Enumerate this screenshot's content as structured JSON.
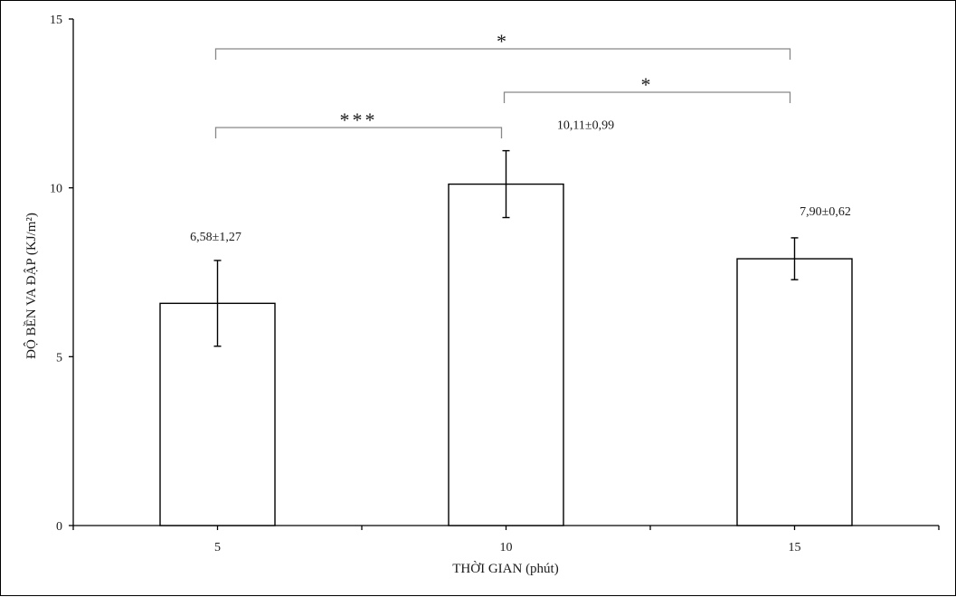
{
  "chart_data": {
    "type": "bar",
    "categories": [
      "5",
      "10",
      "15"
    ],
    "values": [
      6.58,
      10.11,
      7.9
    ],
    "errors": [
      1.27,
      0.99,
      0.62
    ],
    "data_labels": [
      "6,58±1,27",
      "10,11±0,99",
      "7,90±0,62"
    ],
    "xlabel": "THỜI GIAN (phút)",
    "ylabel": "ĐỘ BỀN VA ĐẬP (KJ/m²)",
    "ylim": [
      0,
      15
    ],
    "yticks": [
      0,
      5,
      10,
      15
    ],
    "grid": false,
    "legend": "none",
    "bar_fill": "#ffffff",
    "bar_stroke": "#000000",
    "bracket_color": "#888888",
    "significance": [
      {
        "from": 0,
        "to": 1,
        "label": "***"
      },
      {
        "from": 1,
        "to": 2,
        "label": "*"
      },
      {
        "from": 0,
        "to": 2,
        "label": "*"
      }
    ]
  }
}
